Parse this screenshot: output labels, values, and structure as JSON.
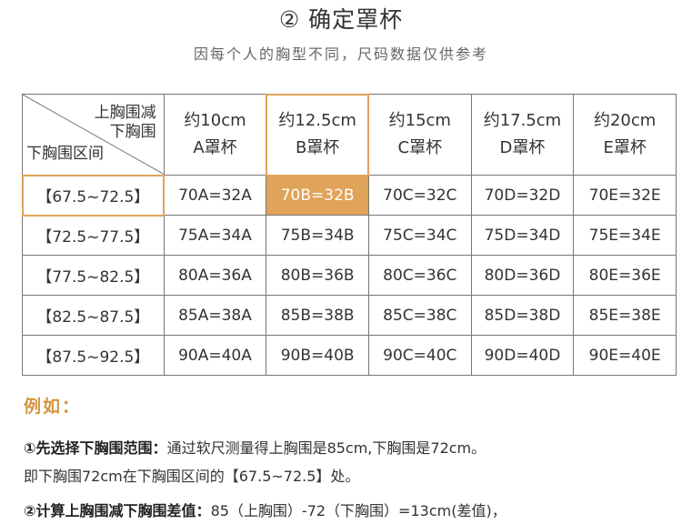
{
  "header": {
    "title": "② 确定罩杯",
    "subtitle": "因每个人的胸型不同，尺码数据仅供参考"
  },
  "table": {
    "corner_top_line1": "上胸围减",
    "corner_top_line2": "下胸围",
    "corner_bottom": "下胸围区间",
    "columns": [
      {
        "diff": "约10cm",
        "cup": "A罩杯"
      },
      {
        "diff": "约12.5cm",
        "cup": "B罩杯"
      },
      {
        "diff": "约15cm",
        "cup": "C罩杯"
      },
      {
        "diff": "约17.5cm",
        "cup": "D罩杯"
      },
      {
        "diff": "约20cm",
        "cup": "E罩杯"
      }
    ],
    "rows": [
      {
        "range": "【67.5~72.5】",
        "cells": [
          "70A=32A",
          "70B=32B",
          "70C=32C",
          "70D=32D",
          "70E=32E"
        ]
      },
      {
        "range": "【72.5~77.5】",
        "cells": [
          "75A=34A",
          "75B=34B",
          "75C=34C",
          "75D=34D",
          "75E=34E"
        ]
      },
      {
        "range": "【77.5~82.5】",
        "cells": [
          "80A=36A",
          "80B=36B",
          "80C=36C",
          "80D=36D",
          "80E=36E"
        ]
      },
      {
        "range": "【82.5~87.5】",
        "cells": [
          "85A=38A",
          "85B=38B",
          "85C=38C",
          "85D=38D",
          "85E=38E"
        ]
      },
      {
        "range": "【87.5~92.5】",
        "cells": [
          "90A=40A",
          "90B=40B",
          "90C=40C",
          "90D=40D",
          "90E=40E"
        ]
      }
    ],
    "highlight_color": "#e0a35a"
  },
  "example": {
    "heading": "例如：",
    "line1_bold": "①先选择下胸围范围：",
    "line1_text": "通过软尺测量得上胸围是85cm,下胸围是72cm。",
    "line2_text": "即下胸围72cm在下胸围区间的【67.5~72.5】处。",
    "line3_bold": "②计算上胸围减下胸围差值：",
    "line3_text": "85（上胸围）-72（下胸围）=13cm(差值)，"
  }
}
